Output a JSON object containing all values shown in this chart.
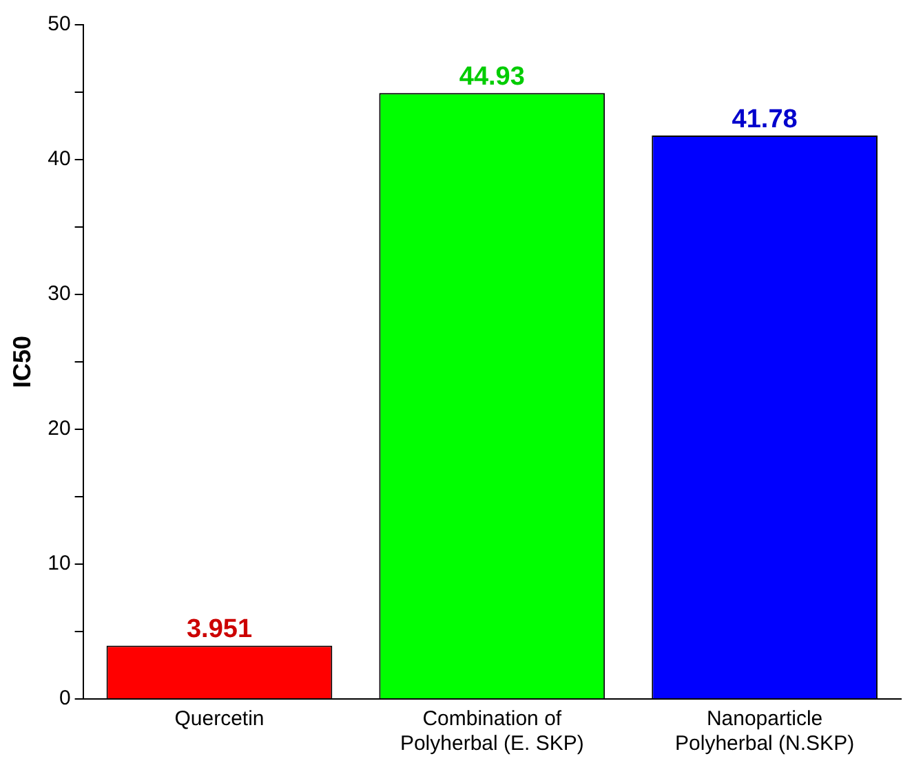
{
  "chart_data": {
    "type": "bar",
    "ylabel": "IC50",
    "categories": [
      "Quercetin",
      "Combination of\nPolyherbal (E. SKP)",
      "Nanoparticle\nPolyherbal (N.SKP)"
    ],
    "values": [
      3.951,
      44.93,
      41.78
    ],
    "colors": [
      "#ff0000",
      "#00ff00",
      "#0000ff"
    ],
    "ylim": [
      0,
      50
    ],
    "yticks": [
      0,
      {
        "value": 5,
        "label": null
      },
      10,
      {
        "value": 15,
        "label": null
      },
      20,
      {
        "value": 25,
        "label": null
      },
      30,
      {
        "value": 35,
        "label": null
      },
      40,
      {
        "value": 45,
        "label": null
      },
      50
    ],
    "data_labels": true,
    "grid": false,
    "legend": false
  }
}
